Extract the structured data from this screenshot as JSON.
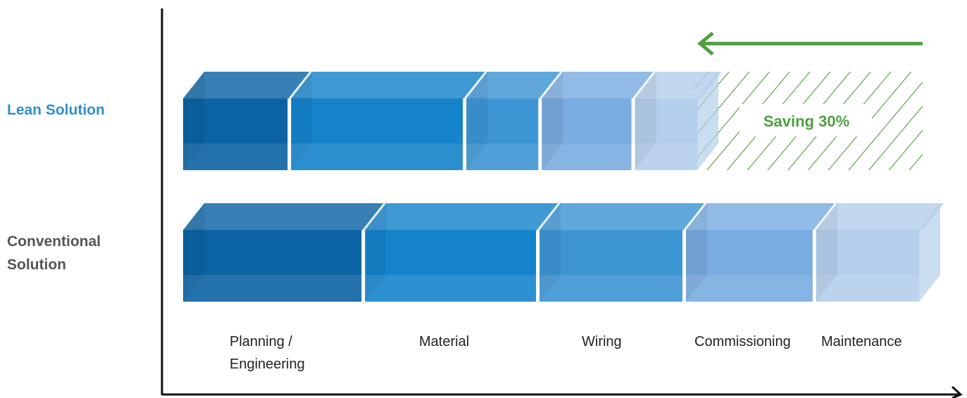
{
  "colors": {
    "axis": "#111111",
    "label_blue": "#2f8fd0",
    "label_gray": "#555555",
    "saving_green": "#4f9e3f",
    "segment_fills": [
      "#0b63a3",
      "#1584cb",
      "#3d95d4",
      "#79ace0",
      "#b4cfeb"
    ]
  },
  "rows": [
    {
      "id": "lean",
      "label_lines": [
        "Lean Solution"
      ],
      "label_color": "#2f8fd0",
      "segments": [
        {
          "phase": "Planning / Engineering",
          "share": 14.6
        },
        {
          "phase": "Material",
          "share": 23.7
        },
        {
          "phase": "Wiring",
          "share": 10.2
        },
        {
          "phase": "Commissioning",
          "share": 12.6
        },
        {
          "phase": "Maintenance",
          "share": 8.9
        }
      ]
    },
    {
      "id": "conventional",
      "label_lines": [
        "Conventional",
        "Solution"
      ],
      "label_color": "#555555",
      "segments": [
        {
          "phase": "Planning / Engineering",
          "share": 24.6
        },
        {
          "phase": "Material",
          "share": 23.6
        },
        {
          "phase": "Wiring",
          "share": 19.8
        },
        {
          "phase": "Commissioning",
          "share": 17.6
        },
        {
          "phase": "Maintenance",
          "share": 14.4
        }
      ]
    }
  ],
  "saving": {
    "label": "Saving 30%",
    "percent": 30
  },
  "phases": [
    {
      "lines": [
        "Planning /",
        "Engineering"
      ]
    },
    {
      "lines": [
        "Material"
      ]
    },
    {
      "lines": [
        "Wiring"
      ]
    },
    {
      "lines": [
        "Commissioning"
      ]
    },
    {
      "lines": [
        "Maintenance"
      ]
    }
  ]
}
